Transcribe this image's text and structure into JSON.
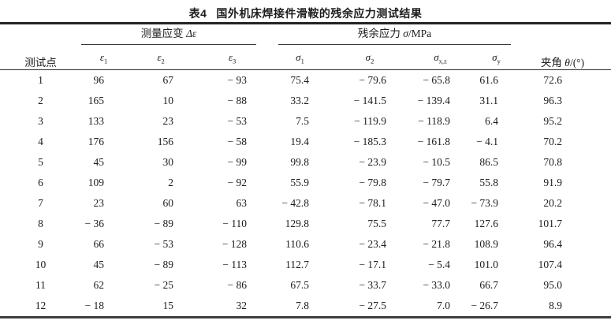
{
  "title": {
    "label": "表4",
    "text": "国外机床焊接件滑鞍的残余应力测试结果"
  },
  "header": {
    "point": "测试点",
    "strain_group": {
      "text": "测量应变",
      "symbol": "Δε"
    },
    "stress_group": {
      "text": "残余应力",
      "symbol": "σ",
      "unit": "/MPa"
    },
    "angle": {
      "text": "夹角",
      "symbol": "θ",
      "unit": "/(°)"
    },
    "strain_cols": [
      {
        "base": "ε",
        "sub": "1"
      },
      {
        "base": "ε",
        "sub": "2"
      },
      {
        "base": "ε",
        "sub": "3"
      }
    ],
    "stress_cols": [
      {
        "base": "σ",
        "sub": "1"
      },
      {
        "base": "σ",
        "sub": "2"
      },
      {
        "base": "σ",
        "sub": "x,z"
      },
      {
        "base": "σ",
        "sub": "y"
      }
    ]
  },
  "rows": [
    [
      "1",
      "96",
      "67",
      "-93",
      "75.4",
      "-79.6",
      "-65.8",
      "61.6",
      "72.6"
    ],
    [
      "2",
      "165",
      "10",
      "-88",
      "33.2",
      "-141.5",
      "-139.4",
      "31.1",
      "96.3"
    ],
    [
      "3",
      "133",
      "23",
      "-53",
      "7.5",
      "-119.9",
      "-118.9",
      "6.4",
      "95.2"
    ],
    [
      "4",
      "176",
      "156",
      "-58",
      "19.4",
      "-185.3",
      "-161.8",
      "-4.1",
      "70.2"
    ],
    [
      "5",
      "45",
      "30",
      "-99",
      "99.8",
      "-23.9",
      "-10.5",
      "86.5",
      "70.8"
    ],
    [
      "6",
      "109",
      "2",
      "-92",
      "55.9",
      "-79.8",
      "-79.7",
      "55.8",
      "91.9"
    ],
    [
      "7",
      "23",
      "60",
      "63",
      "-42.8",
      "-78.1",
      "-47.0",
      "-73.9",
      "20.2"
    ],
    [
      "8",
      "-36",
      "-89",
      "-110",
      "129.8",
      "75.5",
      "77.7",
      "127.6",
      "101.7"
    ],
    [
      "9",
      "66",
      "-53",
      "-128",
      "110.6",
      "-23.4",
      "-21.8",
      "108.9",
      "96.4"
    ],
    [
      "10",
      "45",
      "-89",
      "-113",
      "112.7",
      "-17.1",
      "-5.4",
      "101.0",
      "107.4"
    ],
    [
      "11",
      "62",
      "-25",
      "-86",
      "67.5",
      "-33.7",
      "-33.0",
      "66.7",
      "95.0"
    ],
    [
      "12",
      "-18",
      "15",
      "32",
      "7.8",
      "-27.5",
      "7.0",
      "-26.7",
      "8.9"
    ]
  ]
}
